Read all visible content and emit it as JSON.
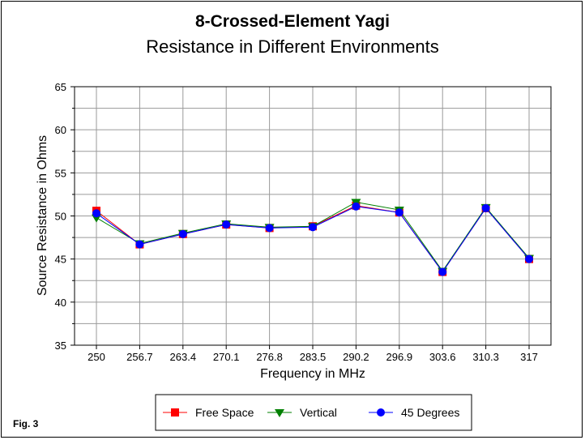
{
  "chart_data": {
    "type": "line",
    "title": "8-Crossed-Element Yagi",
    "subtitle": "Resistance in Different Environments",
    "xlabel": "Frequency in MHz",
    "ylabel": "Source Resistance in Ohms",
    "categories": [
      "250",
      "256.7",
      "263.4",
      "270.1",
      "276.8",
      "283.5",
      "290.2",
      "296.9",
      "303.6",
      "310.3",
      "317"
    ],
    "ylim": [
      35,
      65
    ],
    "yticks": [
      35,
      40,
      45,
      50,
      55,
      60,
      65
    ],
    "grid": true,
    "legend_position": "bottom",
    "series": [
      {
        "name": "Free Space",
        "color": "#ff0000",
        "marker": "square",
        "values": [
          50.6,
          46.7,
          47.9,
          49.0,
          48.6,
          48.8,
          51.2,
          50.4,
          43.5,
          50.9,
          45.0
        ]
      },
      {
        "name": "Vertical",
        "color": "#008000",
        "marker": "triangle-down",
        "values": [
          49.8,
          46.8,
          48.0,
          49.1,
          48.7,
          48.8,
          51.6,
          50.7,
          43.6,
          51.0,
          45.1
        ]
      },
      {
        "name": "45 Degrees",
        "color": "#0000ff",
        "marker": "circle",
        "values": [
          50.3,
          46.7,
          47.9,
          49.0,
          48.6,
          48.7,
          51.1,
          50.4,
          43.5,
          50.9,
          45.0
        ]
      }
    ]
  },
  "figure_label": "Fig. 3"
}
